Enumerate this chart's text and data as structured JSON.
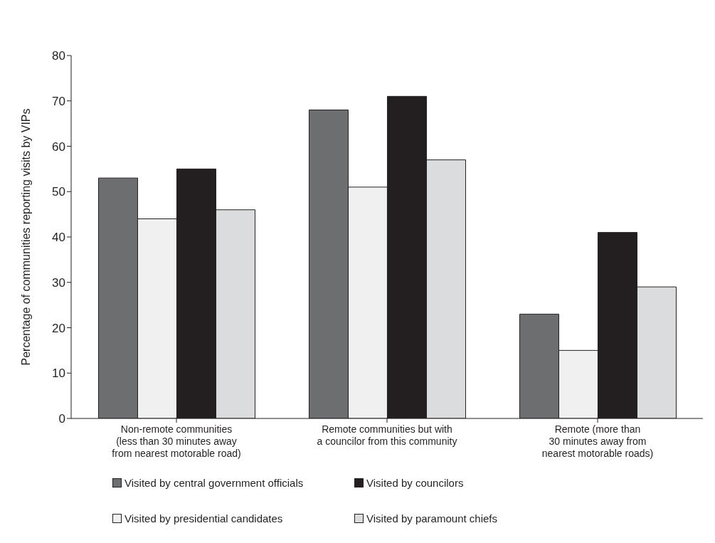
{
  "chart_data": {
    "type": "bar",
    "ylabel": "Percentage of communities reporting visits by VIPs",
    "categories": [
      "Non-remote communities\n(less than 30 minutes away\nfrom nearest motorable road)",
      "Remote communities but with\na councilor from this community",
      "Remote (more than\n30 minutes away from\nnearest motorable roads)"
    ],
    "series": [
      {
        "name": "Visited by central government officials",
        "color": "#6d6e70",
        "values": [
          53,
          68,
          23
        ]
      },
      {
        "name": "Visited by presidential candidates",
        "color": "#f0f0f0",
        "values": [
          44,
          51,
          15
        ]
      },
      {
        "name": "Visited by councilors",
        "color": "#231f20",
        "values": [
          55,
          71,
          41
        ]
      },
      {
        "name": "Visited by paramount chiefs",
        "color": "#dbdcde",
        "values": [
          46,
          57,
          29
        ]
      }
    ],
    "ylim": [
      0,
      80
    ],
    "yticks": [
      0,
      10,
      20,
      30,
      40,
      50,
      60,
      70,
      80
    ],
    "grid": false,
    "legend": "bottom"
  }
}
